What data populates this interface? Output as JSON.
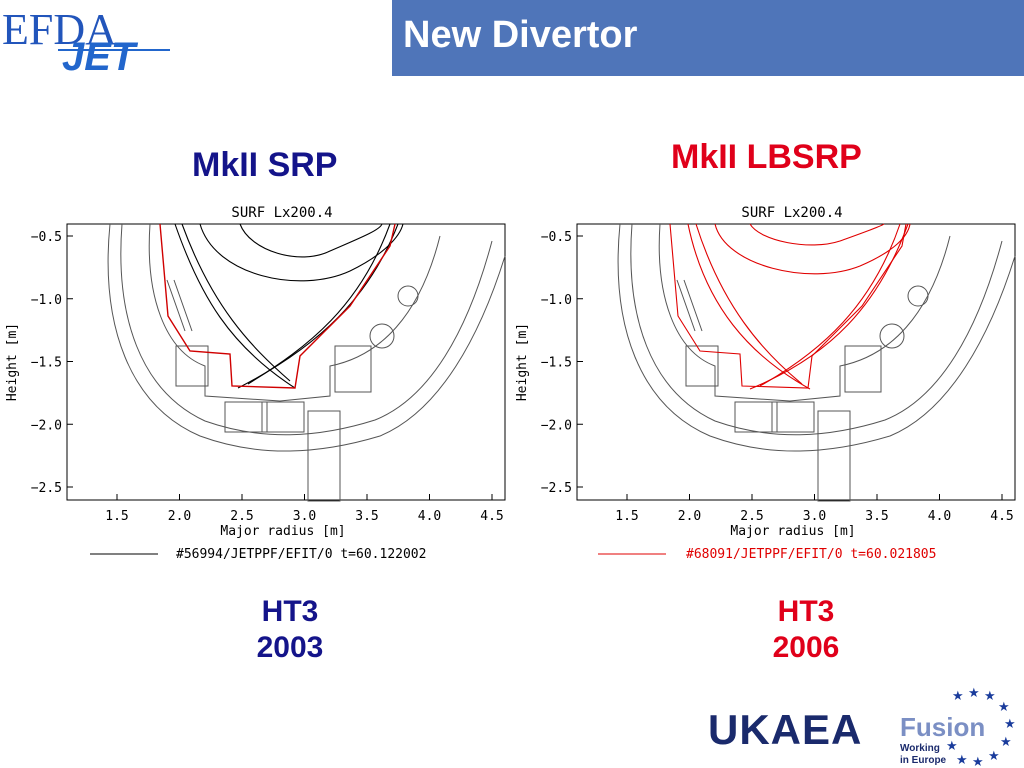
{
  "header": {
    "title": "New Divertor"
  },
  "logo": {
    "efda": "EFDA",
    "jet": "JET"
  },
  "left_panel": {
    "heading": "MkII SRP",
    "plot_title": "SURF Lx200.4",
    "xlabel": "Major radius [m]",
    "ylabel": "Height [m]",
    "x_ticks": [
      "1.5",
      "2.0",
      "2.5",
      "3.0",
      "3.5",
      "4.0",
      "4.5"
    ],
    "y_ticks": [
      "-0.5",
      "-1.0",
      "-1.5",
      "-2.0",
      "-2.5"
    ],
    "legend": "#56994/JETPPF/EFIT/0 t=60.122002",
    "color": "#000000",
    "footnote_line1": "HT3",
    "footnote_line2": "2003"
  },
  "right_panel": {
    "heading": "MkII LBSRP",
    "plot_title": "SURF Lx200.4",
    "xlabel": "Major radius [m]",
    "ylabel": "Height [m]",
    "x_ticks": [
      "1.5",
      "2.0",
      "2.5",
      "3.0",
      "3.5",
      "4.0",
      "4.5"
    ],
    "y_ticks": [
      "-0.5",
      "-1.0",
      "-1.5",
      "-2.0",
      "-2.5"
    ],
    "legend": "#68091/JETPPF/EFIT/0 t=60.021805",
    "color": "#e00000",
    "footnote_line1": "HT3",
    "footnote_line2": "2006"
  },
  "footer": {
    "ukaea": "UKAEA",
    "fusion": "Fusion",
    "fusion_sub1": "Working",
    "fusion_sub2": "in Europe"
  },
  "colors": {
    "title_bar": "#4f75b9",
    "navy": "#14148a",
    "red": "#e0001a"
  }
}
